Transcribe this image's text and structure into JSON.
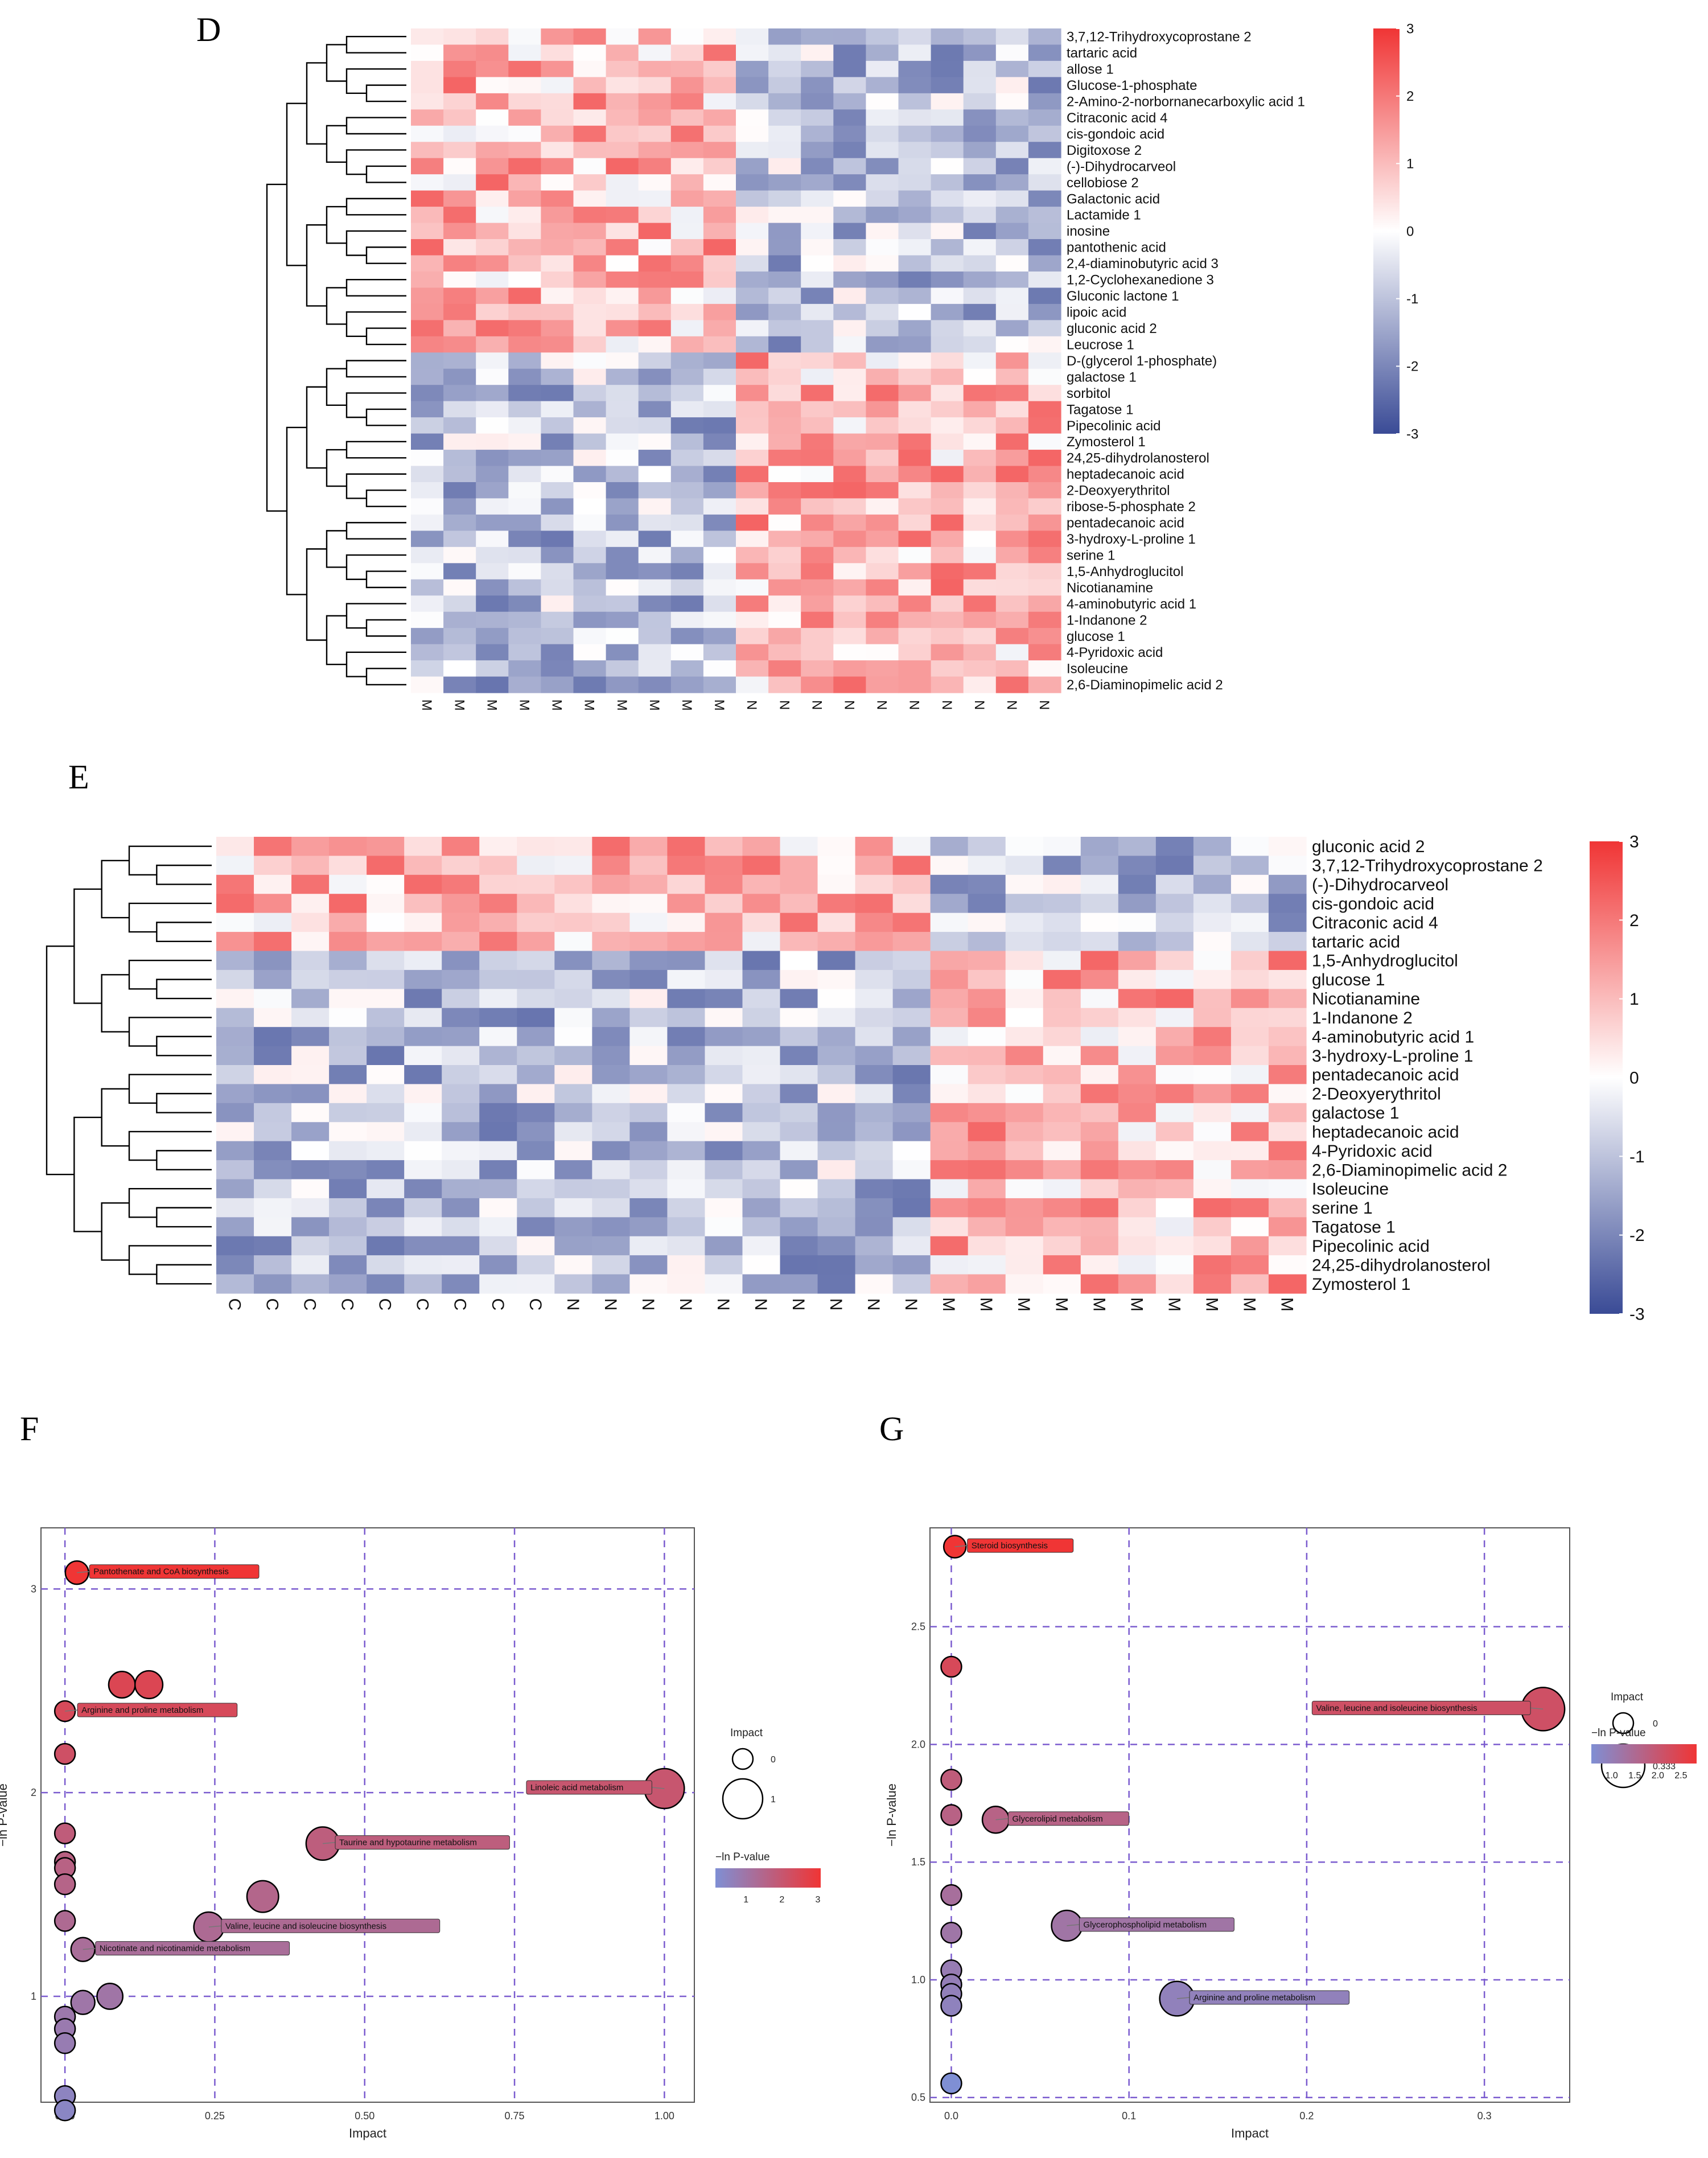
{
  "colors": {
    "high": "#f03535",
    "mid": "#ffffff",
    "low": "#3a4b96",
    "dendrogram": "#000000",
    "grid": "#7b5ccf",
    "bubble_stroke": "#000000"
  },
  "panel_letters": [
    "D",
    "E",
    "F",
    "G"
  ],
  "chart_data": [
    {
      "type": "heatmap",
      "panel": "D",
      "rows": [
        "3,7,12-Trihydroxycoprostane 2",
        "tartaric acid",
        "allose 1",
        "Glucose-1-phosphate",
        "2-Amino-2-norbornanecarboxylic acid 1",
        "Citraconic acid 4",
        "cis-gondoic acid",
        "Digitoxose 2",
        "(-)-Dihydrocarveol",
        "cellobiose 2",
        "Galactonic acid",
        "Lactamide 1",
        "inosine",
        "pantothenic acid",
        "2,4-diaminobutyric acid 3",
        "1,2-Cyclohexanedione 3",
        "Gluconic lactone 1",
        "lipoic acid",
        "gluconic acid 2",
        "Leucrose 1",
        "D-(glycerol 1-phosphate)",
        "galactose 1",
        "sorbitol",
        "Tagatose 1",
        "Pipecolinic acid",
        "Zymosterol 1",
        "24,25-dihydrolanosterol",
        "heptadecanoic acid",
        "2-Deoxyerythritol",
        "ribose-5-phosphate 2",
        "pentadecanoic acid",
        "3-hydroxy-L-proline 1",
        "serine 1",
        "1,5-Anhydroglucitol",
        "Nicotianamine",
        "4-aminobutyric acid 1",
        "1-Indanone 2",
        "glucose 1",
        "4-Pyridoxic acid",
        "Isoleucine",
        "2,6-Diaminopimelic acid 2"
      ],
      "columns": [
        "M",
        "M",
        "M",
        "M",
        "M",
        "M",
        "M",
        "M",
        "M",
        "M",
        "N",
        "N",
        "N",
        "N",
        "N",
        "N",
        "N",
        "N",
        "N",
        "N"
      ],
      "group_row_counts": [
        20,
        21
      ],
      "legend_ticks": [
        3,
        2,
        1,
        0,
        -1,
        -2,
        -3
      ],
      "range": [
        -3,
        3
      ]
    },
    {
      "type": "heatmap",
      "panel": "E",
      "rows": [
        "gluconic acid 2",
        "3,7,12-Trihydroxycoprostane 2",
        "(-)-Dihydrocarveol",
        "cis-gondoic acid",
        "Citraconic acid 4",
        "tartaric acid",
        "1,5-Anhydroglucitol",
        "glucose 1",
        "Nicotianamine",
        "1-Indanone 2",
        "4-aminobutyric acid 1",
        "3-hydroxy-L-proline 1",
        "pentadecanoic acid",
        "2-Deoxyerythritol",
        "galactose 1",
        "heptadecanoic acid",
        "4-Pyridoxic acid",
        "2,6-Diaminopimelic acid 2",
        "Isoleucine",
        "serine 1",
        "Tagatose 1",
        "Pipecolinic acid",
        "24,25-dihydrolanosterol",
        "Zymosterol 1"
      ],
      "columns": [
        "C",
        "C",
        "C",
        "C",
        "C",
        "C",
        "C",
        "C",
        "C",
        "N",
        "N",
        "N",
        "N",
        "N",
        "N",
        "N",
        "N",
        "N",
        "N",
        "M",
        "M",
        "M",
        "M",
        "M",
        "M",
        "M",
        "M",
        "M",
        "M"
      ],
      "group_row_counts": [
        6,
        18
      ],
      "legend_ticks": [
        3,
        2,
        1,
        0,
        -1,
        -2,
        -3
      ],
      "range": [
        -3,
        3
      ]
    },
    {
      "type": "scatter",
      "panel": "F",
      "xlabel": "Impact",
      "ylabel": "−ln P-value",
      "xlim": [
        -0.04,
        1.05
      ],
      "ylim": [
        0.48,
        3.3
      ],
      "xticks": [
        "0.00",
        "0.25",
        "0.50",
        "0.75",
        "1.00"
      ],
      "xtick_values": [
        0,
        0.25,
        0.5,
        0.75,
        1.0
      ],
      "yticks": [
        "1",
        "2",
        "3"
      ],
      "ytick_values": [
        1,
        2,
        3
      ],
      "points": [
        {
          "x": 0.02,
          "y": 3.08,
          "label": "Pantothenate and CoA biosynthesis"
        },
        {
          "x": 0.095,
          "y": 2.53
        },
        {
          "x": 0.14,
          "y": 2.53
        },
        {
          "x": 0.0,
          "y": 2.4,
          "label": "Arginine and proline metabolism"
        },
        {
          "x": 0.0,
          "y": 2.19
        },
        {
          "x": 1.0,
          "y": 2.02,
          "label": "Linoleic acid metabolism"
        },
        {
          "x": 0.0,
          "y": 1.8
        },
        {
          "x": 0.43,
          "y": 1.75,
          "label": "Taurine and hypotaurine metabolism"
        },
        {
          "x": 0.0,
          "y": 1.66
        },
        {
          "x": 0.0,
          "y": 1.63
        },
        {
          "x": 0.0,
          "y": 1.55
        },
        {
          "x": 0.33,
          "y": 1.49
        },
        {
          "x": 0.0,
          "y": 1.37
        },
        {
          "x": 0.24,
          "y": 1.34,
          "label": "Valine, leucine and isoleucine biosynthesis"
        },
        {
          "x": 0.03,
          "y": 1.23,
          "label": "Nicotinate and nicotinamide metabolism"
        },
        {
          "x": 0.075,
          "y": 1.0
        },
        {
          "x": 0.03,
          "y": 0.97
        },
        {
          "x": 0.0,
          "y": 0.9
        },
        {
          "x": 0.0,
          "y": 0.84
        },
        {
          "x": 0.0,
          "y": 0.77
        },
        {
          "x": 0.0,
          "y": 0.51
        },
        {
          "x": 0.0,
          "y": 0.44
        },
        {
          "x": 0.0,
          "y": 0.15
        }
      ],
      "size_legend": {
        "title": "Impact",
        "entries": [
          "0",
          "1"
        ]
      },
      "color_legend": {
        "title": "−ln P-value",
        "ticks": [
          "1",
          "2",
          "3"
        ],
        "range": [
          0.15,
          3.08
        ]
      }
    },
    {
      "type": "scatter",
      "panel": "G",
      "xlabel": "Impact",
      "ylabel": "−ln P-value",
      "xlim": [
        -0.012,
        0.348
      ],
      "ylim": [
        0.48,
        2.92
      ],
      "xticks": [
        "0.0",
        "0.1",
        "0.2",
        "0.3"
      ],
      "xtick_values": [
        0,
        0.1,
        0.2,
        0.3
      ],
      "yticks": [
        "0.5",
        "1.0",
        "1.5",
        "2.0",
        "2.5"
      ],
      "ytick_values": [
        0.5,
        1.0,
        1.5,
        2.0,
        2.5
      ],
      "points": [
        {
          "x": 0.002,
          "y": 2.84,
          "label": "Steroid biosynthesis"
        },
        {
          "x": 0.0,
          "y": 2.33
        },
        {
          "x": 0.333,
          "y": 2.15,
          "label": "Valine, leucine and isoleucine biosynthesis"
        },
        {
          "x": 0.0,
          "y": 1.85
        },
        {
          "x": 0.025,
          "y": 1.68,
          "label": "Glycerolipid metabolism"
        },
        {
          "x": 0.0,
          "y": 1.7
        },
        {
          "x": 0.0,
          "y": 1.36
        },
        {
          "x": 0.065,
          "y": 1.23,
          "label": "Glycerophospholipid metabolism"
        },
        {
          "x": 0.0,
          "y": 1.2
        },
        {
          "x": 0.0,
          "y": 1.04
        },
        {
          "x": 0.0,
          "y": 0.98
        },
        {
          "x": 0.0,
          "y": 0.94
        },
        {
          "x": 0.127,
          "y": 0.92,
          "label": "Arginine and proline metabolism"
        },
        {
          "x": 0.0,
          "y": 0.89
        },
        {
          "x": 0.0,
          "y": 0.56
        }
      ],
      "size_legend": {
        "title": "Impact",
        "entries": [
          "0",
          "0.333"
        ]
      },
      "color_legend": {
        "title": "−ln P-value",
        "ticks": [
          "1.0",
          "1.5",
          "2.0",
          "2.5"
        ],
        "range": [
          0.56,
          2.84
        ]
      }
    }
  ]
}
